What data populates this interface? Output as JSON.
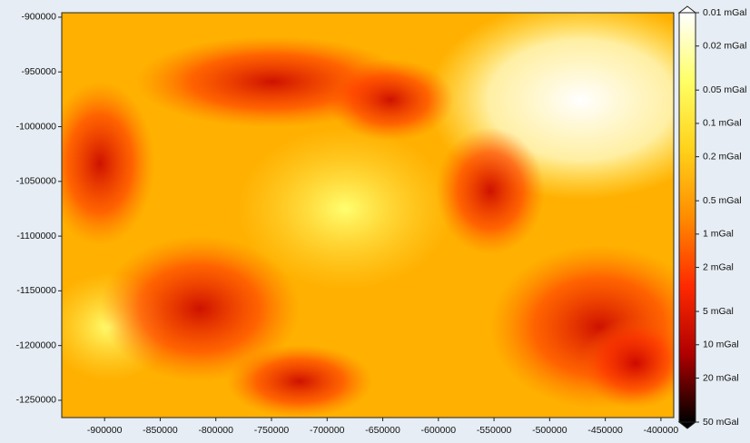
{
  "chart_data": {
    "type": "heatmap",
    "xlim": [
      -938500,
      -388500
    ],
    "xticks": [
      -900000,
      -850000,
      -800000,
      -750000,
      -700000,
      -650000,
      -600000,
      -550000,
      -500000,
      -450000,
      -400000
    ],
    "ylim": [
      -1265800,
      -895900
    ],
    "yticks": [
      -900000,
      -950000,
      -1000000,
      -1050000,
      -1100000,
      -1150000,
      -1200000,
      -1250000
    ],
    "colorbar": {
      "scale": "log",
      "lim": [
        0.01,
        50
      ],
      "colors": [
        "#ffffff",
        "#ffff66",
        "#ffd21a",
        "#ff8c00",
        "#ff2a00",
        "#b00000",
        "#000000"
      ],
      "ticks": [
        {
          "value": 0.01,
          "label": "0.01 mGal"
        },
        {
          "value": 0.02,
          "label": "0.02 mGal"
        },
        {
          "value": 0.05,
          "label": "0.05 mGal"
        },
        {
          "value": 0.1,
          "label": "0.1 mGal"
        },
        {
          "value": 0.2,
          "label": "0.2 mGal"
        },
        {
          "value": 0.5,
          "label": "0.5 mGal"
        },
        {
          "value": 1,
          "label": "1 mGal"
        },
        {
          "value": 2,
          "label": "2 mGal"
        },
        {
          "value": 5,
          "label": "5 mGal"
        },
        {
          "value": 10,
          "label": "10 mGal"
        },
        {
          "value": 20,
          "label": "20 mGal"
        },
        {
          "value": 50,
          "label": "50 mGal"
        }
      ]
    }
  }
}
